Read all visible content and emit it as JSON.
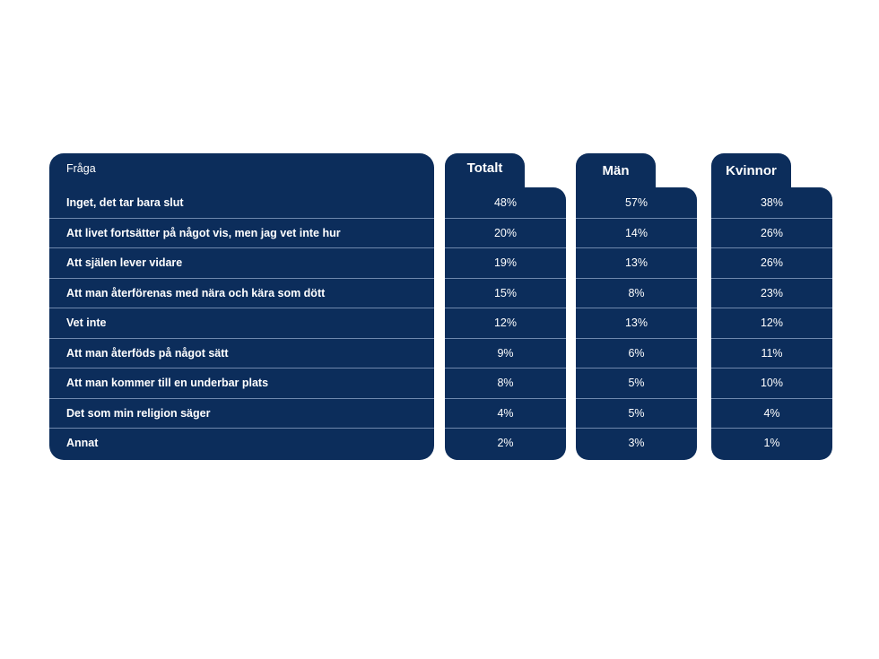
{
  "chart_data": {
    "type": "table",
    "header_question": "Fråga",
    "columns": [
      "Totalt",
      "Män",
      "Kvinnor"
    ],
    "rows": [
      {
        "label": "Inget, det tar bara slut",
        "values": [
          "48%",
          "57%",
          "38%"
        ]
      },
      {
        "label": "Att livet fortsätter på något vis, men jag vet inte hur",
        "values": [
          "20%",
          "14%",
          "26%"
        ]
      },
      {
        "label": "Att själen lever vidare",
        "values": [
          "19%",
          "13%",
          "26%"
        ]
      },
      {
        "label": "Att man återförenas med nära och kära som dött",
        "values": [
          "15%",
          "8%",
          "23%"
        ]
      },
      {
        "label": "Vet inte",
        "values": [
          "12%",
          "13%",
          "12%"
        ]
      },
      {
        "label": "Att man återföds på något sätt",
        "values": [
          "9%",
          "6%",
          "11%"
        ]
      },
      {
        "label": "Att man kommer till en underbar plats",
        "values": [
          "8%",
          "5%",
          "10%"
        ]
      },
      {
        "label": "Det som min religion säger",
        "values": [
          "4%",
          "5%",
          "4%"
        ]
      },
      {
        "label": "Annat",
        "values": [
          "2%",
          "3%",
          "1%"
        ]
      }
    ],
    "colors": {
      "panel": "#0c2d5b",
      "divider": "#6f88ad",
      "text": "#ffffff"
    }
  }
}
